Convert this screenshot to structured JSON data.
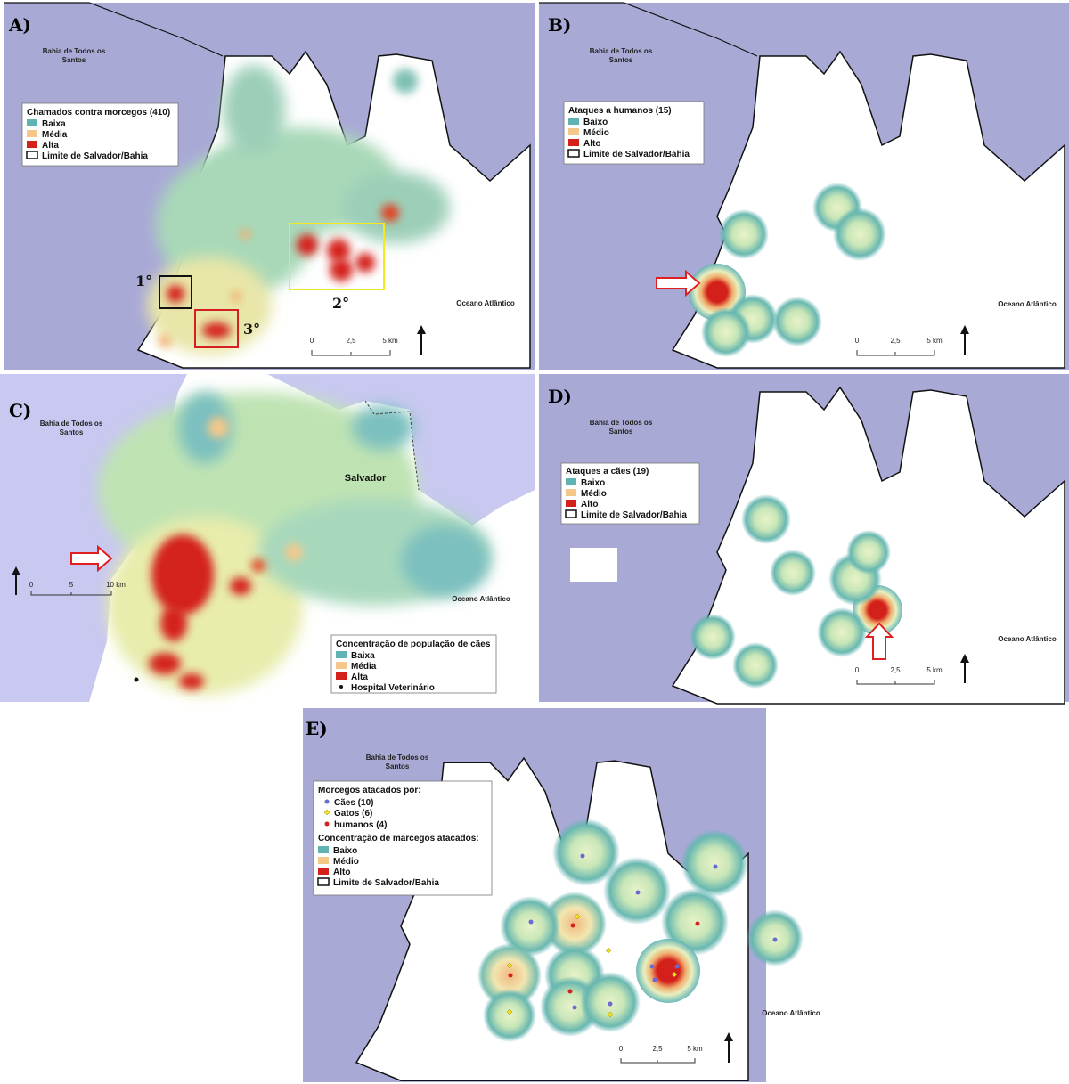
{
  "colors": {
    "sea": "#a9a9d6",
    "land_outside": "#ffffff",
    "heat_low": "#5fb3b3",
    "heat_mid": "#f5c88a",
    "heat_high": "#d4201a",
    "box_black": "#111111",
    "box_red": "#d42020",
    "box_yellow": "#f2ea1e",
    "arrow_red": "#e02020",
    "dot_dogs": "#6a6ad0",
    "dot_cats": "#f2e21a",
    "dot_humans": "#d42020"
  },
  "panels": {
    "A": {
      "title": "A)",
      "sea_label": "Bahia de Todos os Santos",
      "ocean_label": "Oceano Atlântico",
      "legend_title": "Chamados contra morcegos (410)",
      "legend_items": [
        "Baixa",
        "Média",
        "Alta",
        "Limite de Salvador/Bahia"
      ],
      "ranks": [
        "1°",
        "2°",
        "3°"
      ],
      "scale_labels": [
        "0",
        "2,5",
        "5 km"
      ]
    },
    "B": {
      "title": "B)",
      "sea_label": "Bahia de Todos os Santos",
      "ocean_label": "Oceano Atlântico",
      "legend_title": "Ataques a humanos (15)",
      "legend_items": [
        "Baixo",
        "Médio",
        "Alto",
        "Limite de Salvador/Bahia"
      ],
      "scale_labels": [
        "0",
        "2,5",
        "5 km"
      ]
    },
    "C": {
      "title": "C)",
      "sea_label": "Bahia de Todos os Santos",
      "ocean_label": "Oceano Atlântico",
      "city_label": "Salvador",
      "legend_title": "Concentração de população de cães",
      "legend_items": [
        "Baixa",
        "Média",
        "Alta",
        "Hospital Veterinário"
      ],
      "scale_labels": [
        "0",
        "5",
        "10 km"
      ]
    },
    "D": {
      "title": "D)",
      "sea_label": "Bahia de Todos os Santos",
      "ocean_label": "Oceano Atlântico",
      "legend_title": "Ataques a cães (19)",
      "legend_items": [
        "Baixo",
        "Médio",
        "Alto",
        "Limite de Salvador/Bahia"
      ],
      "scale_labels": [
        "0",
        "2,5",
        "5 km"
      ]
    },
    "E": {
      "title": "E)",
      "sea_label": "Bahia de Todos os Santos",
      "ocean_label": "Oceano Atlântico",
      "legend_title": "Morcegos atacados por:",
      "legend_dots": [
        "Cães (10)",
        "Gatos (6)",
        "humanos (4)"
      ],
      "legend_title2": "Concentração de marcegos atacados:",
      "legend_items": [
        "Baixo",
        "Médio",
        "Alto",
        "Limite de Salvador/Bahia"
      ],
      "scale_labels": [
        "0",
        "2,5",
        "5 km"
      ]
    }
  }
}
